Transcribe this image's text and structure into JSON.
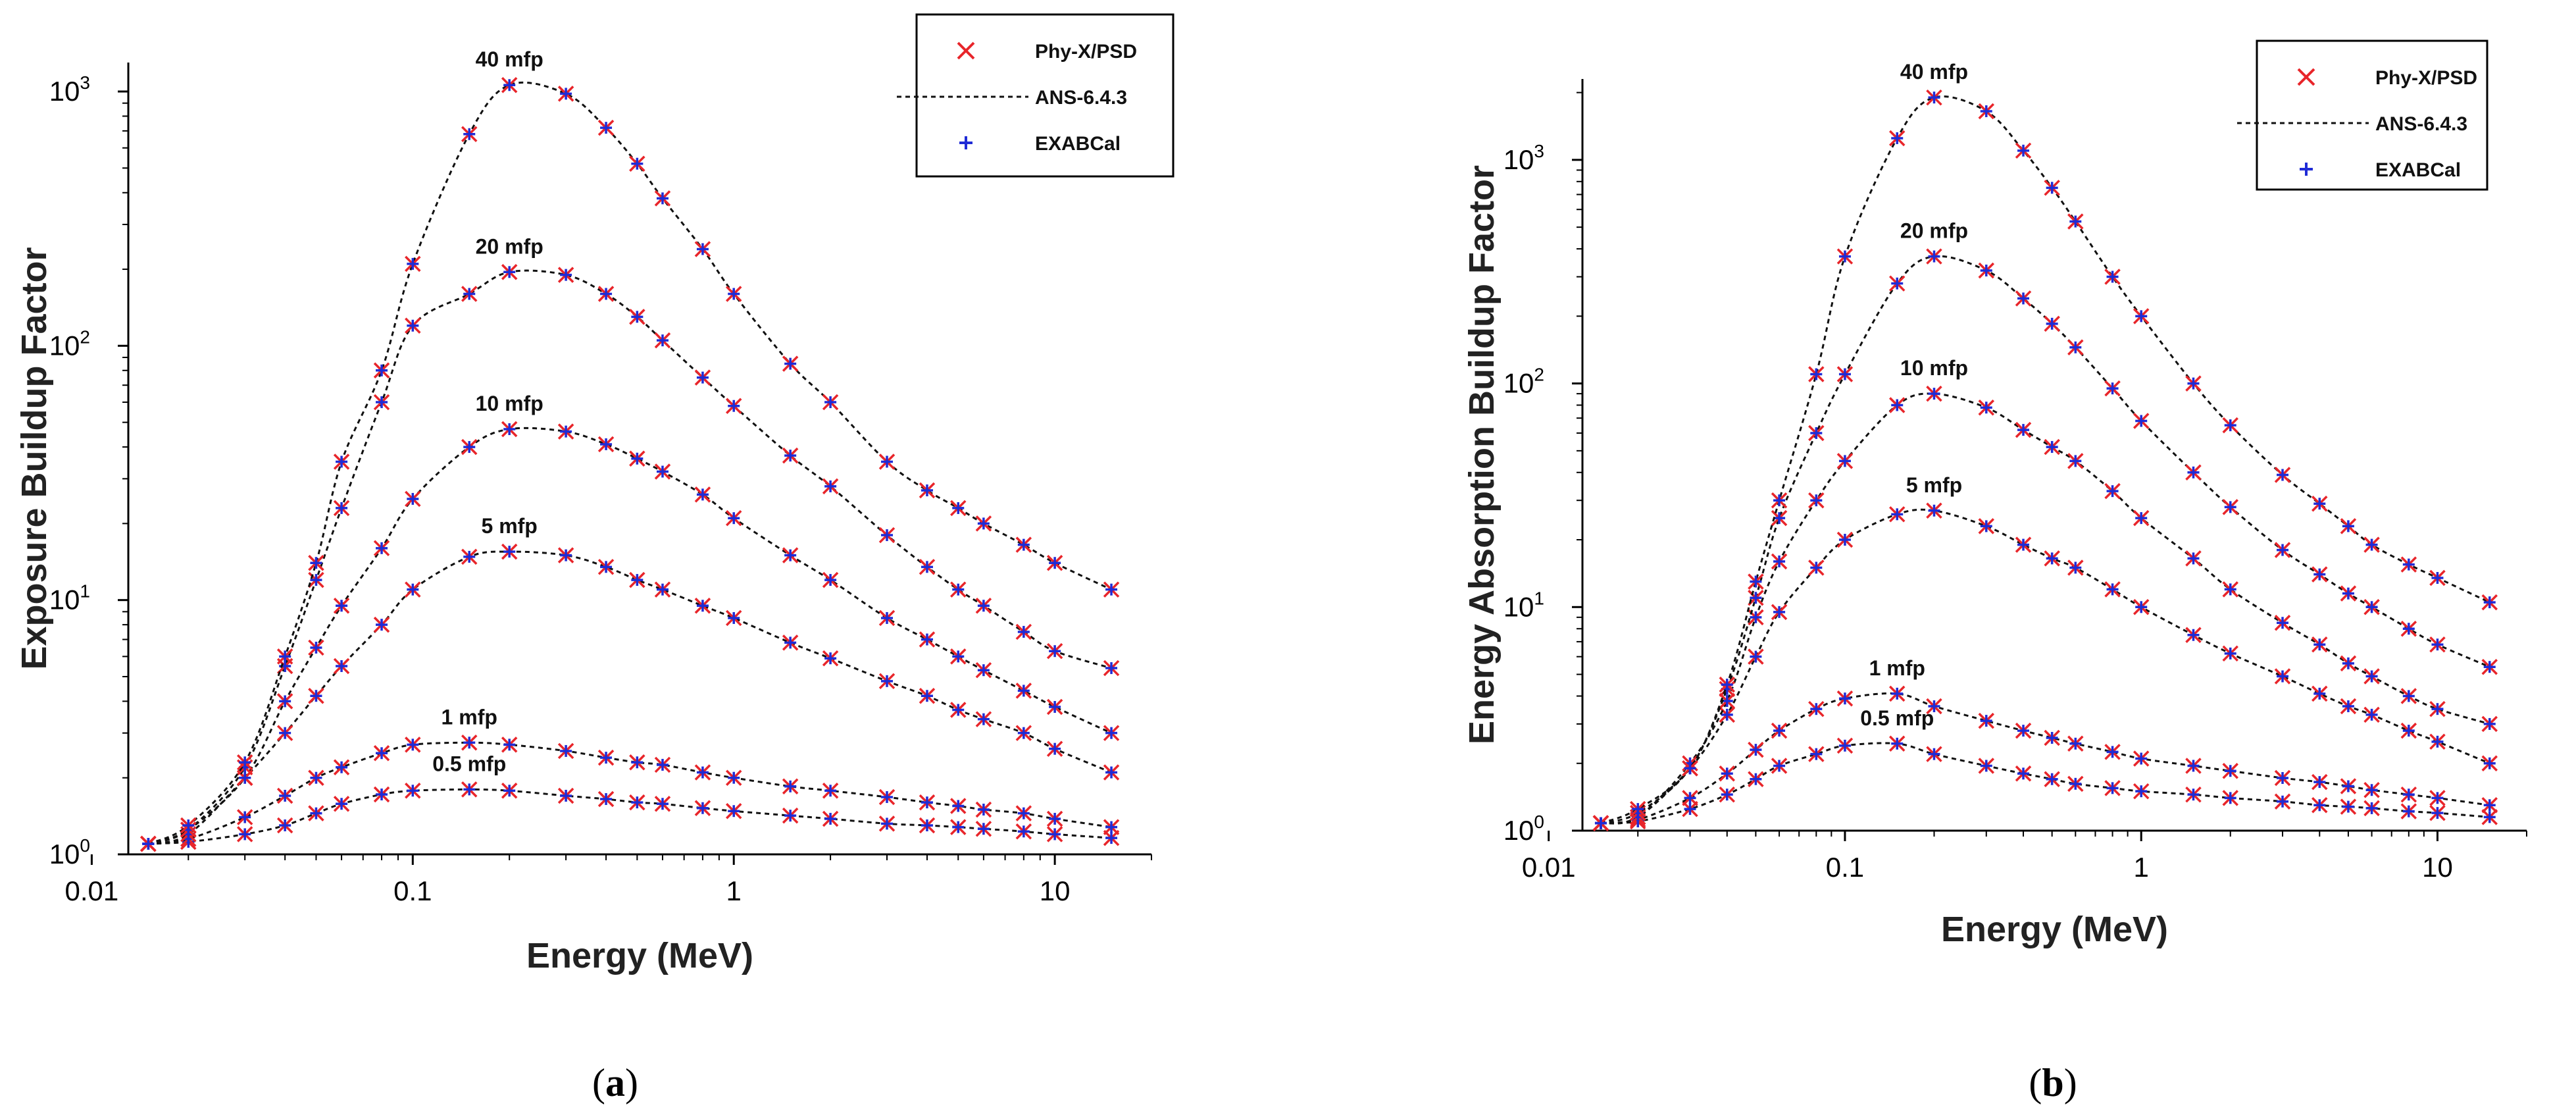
{
  "chart_data": [
    {
      "type": "line",
      "panel_label": "(a)",
      "panel_letter": "a",
      "xlabel": "Energy (MeV)",
      "ylabel": "Exposure Buildup Factor",
      "xscale": "log",
      "yscale": "log",
      "xlim": [
        0.013,
        20
      ],
      "ylim": [
        1,
        1300
      ],
      "x_ticks": [
        {
          "v": 0.01,
          "label": "0.01"
        },
        {
          "v": 0.1,
          "label": "0.1"
        },
        {
          "v": 1,
          "label": "1"
        },
        {
          "v": 10,
          "label": "10"
        }
      ],
      "y_ticks": [
        {
          "v": 1,
          "base": "10",
          "exp": "0"
        },
        {
          "v": 10,
          "base": "10",
          "exp": "1"
        },
        {
          "v": 100,
          "base": "10",
          "exp": "2"
        },
        {
          "v": 1000,
          "base": "10",
          "exp": "3"
        }
      ],
      "legend": {
        "placement": "top-right",
        "entries": [
          {
            "label": "Phy-X/PSD",
            "marker": "x",
            "color": "#e8252a"
          },
          {
            "label": "ANS-6.4.3",
            "marker": "dotted-line",
            "color": "#111111"
          },
          {
            "label": "EXABCal",
            "marker": "+",
            "color": "#1f2bd6"
          }
        ]
      },
      "x": [
        0.015,
        0.02,
        0.03,
        0.04,
        0.05,
        0.06,
        0.08,
        0.1,
        0.15,
        0.2,
        0.3,
        0.4,
        0.5,
        0.6,
        0.8,
        1,
        1.5,
        2,
        3,
        4,
        5,
        6,
        8,
        10,
        15
      ],
      "series": [
        {
          "name": "0.5 mfp",
          "values": [
            1.1,
            1.12,
            1.2,
            1.3,
            1.45,
            1.58,
            1.72,
            1.78,
            1.8,
            1.78,
            1.7,
            1.65,
            1.6,
            1.58,
            1.52,
            1.48,
            1.42,
            1.38,
            1.32,
            1.3,
            1.28,
            1.26,
            1.23,
            1.2,
            1.16
          ]
        },
        {
          "name": "1 mfp",
          "values": [
            1.1,
            1.15,
            1.4,
            1.7,
            2.0,
            2.2,
            2.5,
            2.7,
            2.75,
            2.7,
            2.55,
            2.4,
            2.3,
            2.25,
            2.1,
            2.0,
            1.85,
            1.78,
            1.68,
            1.6,
            1.55,
            1.5,
            1.45,
            1.38,
            1.28
          ]
        },
        {
          "name": "5 mfp",
          "values": [
            1.1,
            1.2,
            2.0,
            3.0,
            4.2,
            5.5,
            8.0,
            11.0,
            14.8,
            15.5,
            15.0,
            13.5,
            12.0,
            11.0,
            9.5,
            8.5,
            6.8,
            5.9,
            4.8,
            4.2,
            3.7,
            3.4,
            3.0,
            2.6,
            2.1
          ]
        },
        {
          "name": "10 mfp",
          "values": [
            1.1,
            1.25,
            2.0,
            4.0,
            6.5,
            9.5,
            16.0,
            25.0,
            40.0,
            47.0,
            46.0,
            41.0,
            36.0,
            32.0,
            26.0,
            21.0,
            15.0,
            12.0,
            8.5,
            7.0,
            6.0,
            5.3,
            4.4,
            3.8,
            3.0
          ]
        },
        {
          "name": "20 mfp",
          "values": [
            1.1,
            1.25,
            2.2,
            5.5,
            12.0,
            23.0,
            60.0,
            120.0,
            160.0,
            195.0,
            190.0,
            160.0,
            130.0,
            105.0,
            75.0,
            58.0,
            37.0,
            28.0,
            18.0,
            13.5,
            11.0,
            9.5,
            7.5,
            6.3,
            5.4
          ]
        },
        {
          "name": "40 mfp",
          "values": [
            1.1,
            1.3,
            2.3,
            6.0,
            14.0,
            35.0,
            80.0,
            210.0,
            680.0,
            1060.0,
            980.0,
            720.0,
            520.0,
            380.0,
            240.0,
            160.0,
            85.0,
            60.0,
            35.0,
            27.0,
            23.0,
            20.0,
            16.5,
            14.0,
            11.0
          ]
        }
      ]
    },
    {
      "type": "line",
      "panel_label": "(b)",
      "panel_letter": "b",
      "xlabel": "Energy (MeV)",
      "ylabel": "Energy Absorption Buildup Factor",
      "xscale": "log",
      "yscale": "log",
      "xlim": [
        0.013,
        20
      ],
      "ylim": [
        1,
        2300
      ],
      "x_ticks": [
        {
          "v": 0.01,
          "label": "0.01"
        },
        {
          "v": 0.1,
          "label": "0.1"
        },
        {
          "v": 1,
          "label": "1"
        },
        {
          "v": 10,
          "label": "10"
        }
      ],
      "y_ticks": [
        {
          "v": 1,
          "base": "10",
          "exp": "0"
        },
        {
          "v": 10,
          "base": "10",
          "exp": "1"
        },
        {
          "v": 100,
          "base": "10",
          "exp": "2"
        },
        {
          "v": 1000,
          "base": "10",
          "exp": "3"
        }
      ],
      "legend": {
        "placement": "top-right",
        "entries": [
          {
            "label": "Phy-X/PSD",
            "marker": "x",
            "color": "#e8252a"
          },
          {
            "label": "ANS-6.4.3",
            "marker": "dotted-line",
            "color": "#111111"
          },
          {
            "label": "EXABCal",
            "marker": "+",
            "color": "#1f2bd6"
          }
        ]
      },
      "x": [
        0.015,
        0.02,
        0.03,
        0.04,
        0.05,
        0.06,
        0.08,
        0.1,
        0.15,
        0.2,
        0.3,
        0.4,
        0.5,
        0.6,
        0.8,
        1,
        1.5,
        2,
        3,
        4,
        5,
        6,
        8,
        10,
        15
      ],
      "series": [
        {
          "name": "0.5 mfp",
          "values": [
            1.08,
            1.1,
            1.25,
            1.45,
            1.7,
            1.95,
            2.2,
            2.4,
            2.45,
            2.2,
            1.95,
            1.8,
            1.7,
            1.62,
            1.55,
            1.5,
            1.45,
            1.4,
            1.35,
            1.3,
            1.28,
            1.26,
            1.22,
            1.2,
            1.15
          ]
        },
        {
          "name": "1 mfp",
          "values": [
            1.08,
            1.12,
            1.4,
            1.8,
            2.3,
            2.8,
            3.5,
            3.9,
            4.1,
            3.6,
            3.1,
            2.8,
            2.6,
            2.45,
            2.25,
            2.1,
            1.95,
            1.85,
            1.72,
            1.65,
            1.58,
            1.52,
            1.45,
            1.4,
            1.3
          ]
        },
        {
          "name": "5 mfp",
          "values": [
            1.08,
            1.15,
            1.9,
            3.3,
            6.0,
            9.5,
            15.0,
            20.0,
            26.0,
            27.0,
            23.0,
            19.0,
            16.5,
            15.0,
            12.0,
            10.0,
            7.5,
            6.2,
            4.9,
            4.1,
            3.6,
            3.3,
            2.8,
            2.5,
            2.0
          ]
        },
        {
          "name": "10 mfp",
          "values": [
            1.08,
            1.15,
            2.0,
            3.8,
            9.0,
            16.0,
            30.0,
            45.0,
            80.0,
            90.0,
            78.0,
            62.0,
            52.0,
            45.0,
            33.0,
            25.0,
            16.5,
            12.0,
            8.5,
            6.8,
            5.6,
            4.9,
            4.0,
            3.5,
            3.0
          ]
        },
        {
          "name": "20 mfp",
          "values": [
            1.08,
            1.2,
            1.9,
            4.3,
            11.0,
            25.0,
            60.0,
            110.0,
            280.0,
            370.0,
            320.0,
            240.0,
            185.0,
            145.0,
            95.0,
            68.0,
            40.0,
            28.0,
            18.0,
            14.0,
            11.5,
            10.0,
            8.0,
            6.8,
            5.4
          ]
        },
        {
          "name": "40 mfp",
          "values": [
            1.08,
            1.25,
            1.9,
            4.5,
            13.0,
            30.0,
            110.0,
            370.0,
            1250.0,
            1900.0,
            1650.0,
            1100.0,
            750.0,
            530.0,
            300.0,
            200.0,
            100.0,
            65.0,
            39.0,
            29.0,
            23.0,
            19.0,
            15.5,
            13.5,
            10.5
          ]
        }
      ]
    }
  ]
}
